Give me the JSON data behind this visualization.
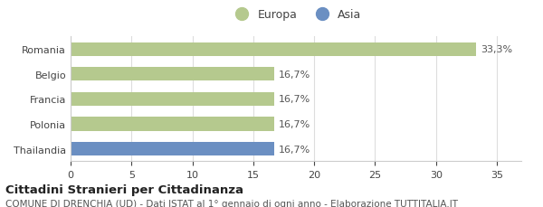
{
  "categories": [
    "Romania",
    "Belgio",
    "Francia",
    "Polonia",
    "Thailandia"
  ],
  "values": [
    33.3,
    16.7,
    16.7,
    16.7,
    16.7
  ],
  "bar_colors": [
    "#b5c98e",
    "#b5c98e",
    "#b5c98e",
    "#b5c98e",
    "#6b8fc2"
  ],
  "bar_labels": [
    "33,3%",
    "16,7%",
    "16,7%",
    "16,7%",
    "16,7%"
  ],
  "legend_labels": [
    "Europa",
    "Asia"
  ],
  "legend_colors": [
    "#b5c98e",
    "#6b8fc2"
  ],
  "xlim": [
    0,
    37
  ],
  "xticks": [
    0,
    5,
    10,
    15,
    20,
    25,
    30,
    35
  ],
  "title": "Cittadini Stranieri per Cittadinanza",
  "subtitle": "COMUNE DI DRENCHIA (UD) - Dati ISTAT al 1° gennaio di ogni anno - Elaborazione TUTTITALIA.IT",
  "title_fontsize": 9.5,
  "subtitle_fontsize": 7.5,
  "label_fontsize": 8,
  "tick_fontsize": 8,
  "legend_fontsize": 9,
  "background_color": "#ffffff"
}
